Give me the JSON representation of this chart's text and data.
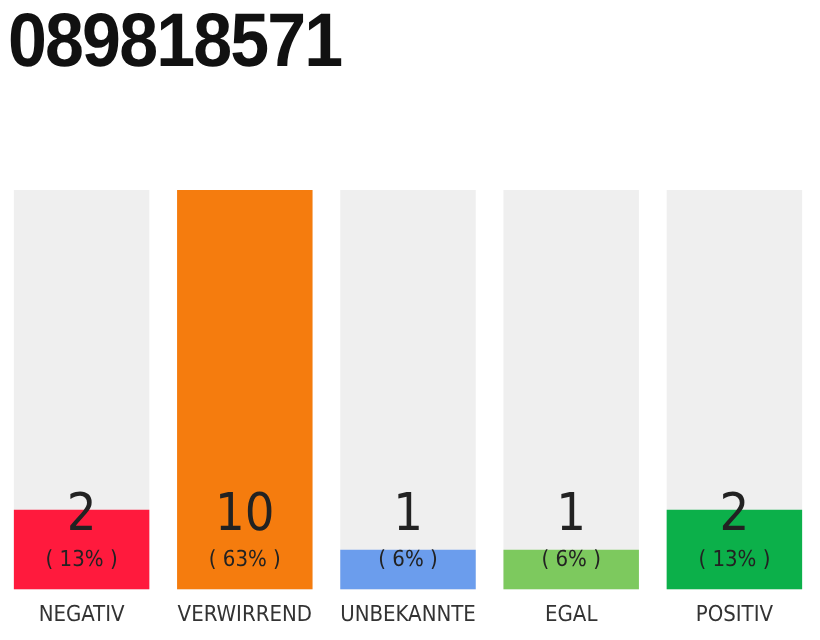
{
  "chart_data": {
    "type": "bar",
    "title": "089818571",
    "categories": [
      "NEGATIV",
      "VERWIRREND",
      "UNBEKANNTE",
      "EGAL",
      "POSITIV"
    ],
    "values": [
      2,
      10,
      1,
      1,
      2
    ],
    "colors": [
      "#ff1a3d",
      "#f57c0e",
      "#6b9ded",
      "#7dc95e",
      "#0cb04a"
    ],
    "data_labels": true,
    "annotations": [
      "( 13% )",
      "( 63% )",
      "( 6% )",
      "( 6% )",
      "( 13% )"
    ],
    "grid": false,
    "legend": false
  }
}
